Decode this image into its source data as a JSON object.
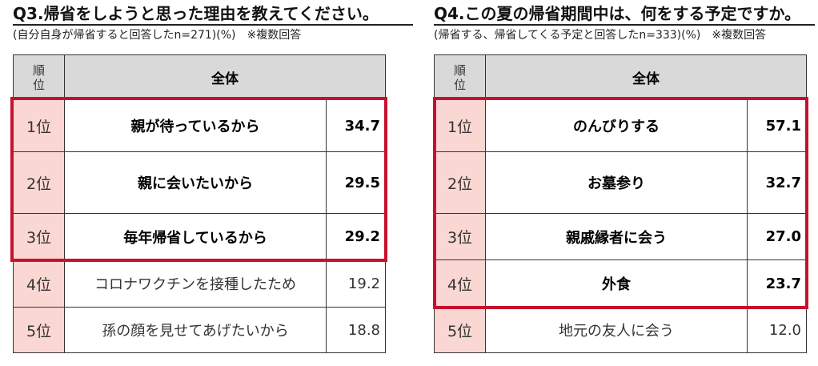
{
  "q3": {
    "title": "Q3.帰省をしようと思った理由を教えてください。",
    "subtitle": "(自分自身が帰省すると回答したn=271)(%)　※複数回答",
    "header": {
      "rank": "順位",
      "all": "全体"
    },
    "rows": [
      {
        "rank": "1位",
        "item": "親が待っているから",
        "value": "34.7"
      },
      {
        "rank": "2位",
        "item": "親に会いたいから",
        "value": "29.5"
      },
      {
        "rank": "3位",
        "item": "毎年帰省しているから",
        "value": "29.2"
      },
      {
        "rank": "4位",
        "item": "コロナワクチンを接種したため",
        "value": "19.2"
      },
      {
        "rank": "5位",
        "item": "孫の顔を見せてあげたいから",
        "value": "18.8"
      }
    ]
  },
  "q4": {
    "title": "Q4.この夏の帰省期間中は、何をする予定ですか。",
    "subtitle": "(帰省する、帰省してくる予定と回答したn=333)(%)　※複数回答",
    "header": {
      "rank": "順位",
      "all": "全体"
    },
    "rows": [
      {
        "rank": "1位",
        "item": "のんびりする",
        "value": "57.1"
      },
      {
        "rank": "2位",
        "item": "お墓参り",
        "value": "32.7"
      },
      {
        "rank": "3位",
        "item": "親戚縁者に会う",
        "value": "27.0"
      },
      {
        "rank": "4位",
        "item": "外食",
        "value": "23.7"
      },
      {
        "rank": "5位",
        "item": "地元の友人に会う",
        "value": "12.0"
      }
    ]
  },
  "colors": {
    "highlight": "#c8102e",
    "rank_bg": "#fad7d2",
    "header_bg": "#d9d9d9"
  }
}
